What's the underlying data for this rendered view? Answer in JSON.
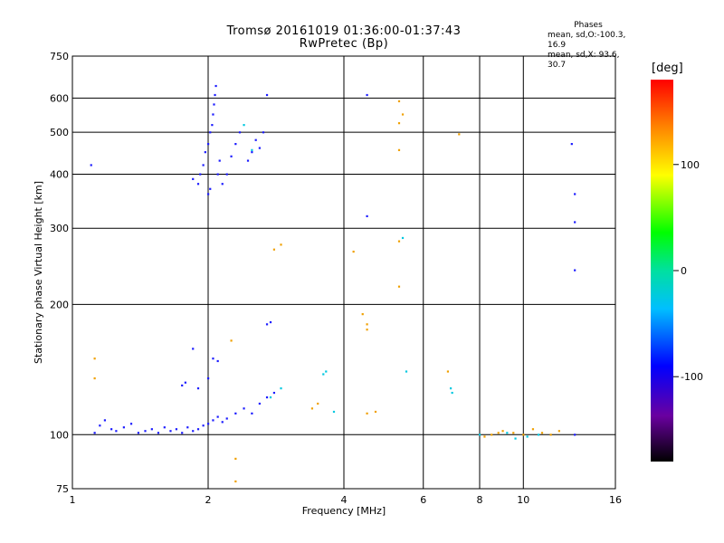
{
  "header": {
    "title_line1": "Tromsø 20161019 01:36:00-01:37:43",
    "title_line2": "RwPretec (Bp)"
  },
  "phases": {
    "title": "Phases",
    "line_o": "mean, sd,O:-100.3, 16.9",
    "line_x": "mean, sd,X:  93.6, 30.7"
  },
  "colorbar": {
    "label": "[deg]",
    "ticks": [
      -100,
      0,
      100
    ],
    "range": [
      -180,
      180
    ]
  },
  "chart_data": {
    "type": "scatter",
    "xlabel": "Frequency [MHz]",
    "ylabel": "Stationary phase Virtual Height [km]",
    "x_scale": "log",
    "y_scale": "log",
    "xlim": [
      1,
      16
    ],
    "ylim": [
      75,
      750
    ],
    "x_ticks": [
      1,
      2,
      4,
      6,
      8,
      10,
      16
    ],
    "y_ticks": [
      75,
      100,
      200,
      300,
      400,
      500,
      600,
      750
    ],
    "grid": true,
    "series": [
      {
        "points": [
          [
            1.12,
            101
          ],
          [
            1.15,
            105
          ],
          [
            1.18,
            108
          ],
          [
            1.22,
            103
          ],
          [
            1.25,
            102
          ],
          [
            1.3,
            104
          ],
          [
            1.35,
            106
          ],
          [
            1.4,
            101
          ],
          [
            1.45,
            102
          ],
          [
            1.5,
            103
          ],
          [
            1.55,
            101
          ],
          [
            1.6,
            104
          ],
          [
            1.65,
            102
          ],
          [
            1.7,
            103
          ],
          [
            1.75,
            101
          ],
          [
            1.8,
            104
          ],
          [
            1.85,
            102
          ],
          [
            1.9,
            103
          ],
          [
            1.95,
            105
          ],
          [
            2.0,
            106
          ],
          [
            2.05,
            108
          ],
          [
            2.1,
            110
          ],
          [
            2.15,
            107
          ],
          [
            2.2,
            109
          ],
          [
            2.3,
            112
          ],
          [
            2.4,
            115
          ],
          [
            2.5,
            112
          ],
          [
            2.6,
            118
          ],
          [
            2.7,
            122
          ],
          [
            2.8,
            125
          ],
          [
            1.75,
            130
          ],
          [
            1.78,
            132
          ],
          [
            1.9,
            128
          ],
          [
            2.0,
            135
          ],
          [
            2.05,
            150
          ],
          [
            2.1,
            148
          ],
          [
            2.7,
            180
          ],
          [
            2.75,
            182
          ],
          [
            1.85,
            158
          ],
          [
            1.1,
            420
          ],
          [
            1.85,
            390
          ],
          [
            1.9,
            380
          ],
          [
            1.92,
            400
          ],
          [
            1.95,
            420
          ],
          [
            1.97,
            450
          ],
          [
            2.0,
            470
          ],
          [
            2.02,
            500
          ],
          [
            2.04,
            520
          ],
          [
            2.05,
            550
          ],
          [
            2.06,
            580
          ],
          [
            2.07,
            610
          ],
          [
            2.08,
            640
          ],
          [
            2.0,
            360
          ],
          [
            2.02,
            370
          ],
          [
            2.1,
            400
          ],
          [
            2.12,
            430
          ],
          [
            2.15,
            380
          ],
          [
            2.2,
            400
          ],
          [
            2.25,
            440
          ],
          [
            2.3,
            470
          ],
          [
            2.35,
            500
          ],
          [
            2.45,
            430
          ],
          [
            2.5,
            450
          ],
          [
            2.55,
            480
          ],
          [
            2.6,
            460
          ],
          [
            2.65,
            500
          ],
          [
            2.7,
            610
          ],
          [
            4.5,
            610
          ],
          [
            4.5,
            320
          ],
          [
            13.0,
            100
          ],
          [
            12.8,
            470
          ],
          [
            13.0,
            360
          ],
          [
            13.0,
            310
          ],
          [
            13.0,
            240
          ]
        ]
      },
      {
        "points": [
          [
            1.12,
            150
          ],
          [
            1.12,
            135
          ],
          [
            2.3,
            88
          ],
          [
            2.3,
            78
          ],
          [
            2.25,
            165
          ],
          [
            4.2,
            265
          ],
          [
            4.4,
            190
          ],
          [
            4.5,
            180
          ],
          [
            4.5,
            175
          ],
          [
            4.5,
            112
          ],
          [
            4.7,
            113
          ],
          [
            5.3,
            590
          ],
          [
            5.3,
            525
          ],
          [
            5.3,
            455
          ],
          [
            5.3,
            280
          ],
          [
            5.3,
            220
          ],
          [
            5.4,
            550
          ],
          [
            6.8,
            140
          ],
          [
            7.2,
            495
          ],
          [
            3.4,
            115
          ],
          [
            3.5,
            118
          ],
          [
            2.9,
            275
          ],
          [
            2.8,
            268
          ],
          [
            8.5,
            100
          ],
          [
            9.0,
            102
          ],
          [
            9.5,
            101
          ],
          [
            10.0,
            100
          ],
          [
            10.5,
            103
          ],
          [
            11.0,
            101
          ],
          [
            11.5,
            100
          ],
          [
            12.0,
            102
          ],
          [
            8.2,
            99
          ],
          [
            8.8,
            101
          ]
        ]
      },
      {
        "points": [
          [
            3.6,
            138
          ],
          [
            3.65,
            140
          ],
          [
            5.4,
            285
          ],
          [
            5.5,
            140
          ],
          [
            6.9,
            128
          ],
          [
            6.95,
            125
          ],
          [
            8.0,
            100
          ],
          [
            9.2,
            101
          ],
          [
            10.2,
            99
          ],
          [
            10.8,
            100
          ],
          [
            2.4,
            520
          ],
          [
            2.5,
            455
          ],
          [
            2.75,
            122
          ],
          [
            2.9,
            128
          ],
          [
            3.8,
            113
          ],
          [
            9.6,
            98
          ]
        ]
      }
    ]
  }
}
